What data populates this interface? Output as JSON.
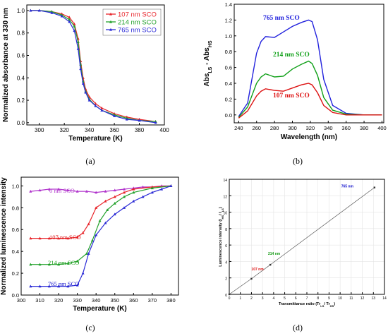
{
  "panels": [
    {
      "label": "(a)"
    },
    {
      "label": "(b)"
    },
    {
      "label": "(c)"
    },
    {
      "label": "(d)"
    }
  ],
  "chart_data": [
    {
      "type": "line",
      "xlabel": "Temperature (K)",
      "ylabel": "Normalized absorbance at 330 nm",
      "xlim": [
        290,
        400
      ],
      "ylim": [
        -0.02,
        1.05
      ],
      "xticks": [
        300,
        320,
        340,
        360,
        380,
        400
      ],
      "yticks": [
        0.0,
        0.2,
        0.4,
        0.6,
        0.8,
        1.0
      ],
      "legend_position": "top-right",
      "series": [
        {
          "name": "107 nm SCO",
          "color": "#e8242a",
          "x": [
            293,
            300,
            310,
            318,
            324,
            328,
            331,
            333,
            335,
            337,
            340,
            345,
            350,
            360,
            370,
            380,
            393
          ],
          "y": [
            1.0,
            1.0,
            0.99,
            0.97,
            0.94,
            0.88,
            0.75,
            0.55,
            0.4,
            0.3,
            0.23,
            0.17,
            0.13,
            0.08,
            0.05,
            0.03,
            0.01
          ]
        },
        {
          "name": "214 nm SCO",
          "color": "#22a12b",
          "x": [
            293,
            300,
            310,
            318,
            324,
            328,
            331,
            333,
            335,
            337,
            340,
            345,
            350,
            360,
            370,
            380,
            393
          ],
          "y": [
            1.0,
            1.0,
            0.99,
            0.96,
            0.92,
            0.86,
            0.72,
            0.52,
            0.37,
            0.28,
            0.21,
            0.15,
            0.11,
            0.07,
            0.04,
            0.02,
            0.01
          ]
        },
        {
          "name": "765 nm SCO",
          "color": "#2b2bd6",
          "x": [
            293,
            300,
            310,
            318,
            324,
            328,
            331,
            333,
            335,
            337,
            340,
            345,
            350,
            360,
            370,
            380,
            393
          ],
          "y": [
            1.0,
            1.0,
            0.98,
            0.95,
            0.9,
            0.82,
            0.66,
            0.48,
            0.35,
            0.27,
            0.2,
            0.15,
            0.11,
            0.06,
            0.03,
            0.02,
            0.0
          ]
        }
      ]
    },
    {
      "type": "line",
      "xlabel": "Wavelength (nm)",
      "ylabel": "Abs",
      "ylabel_sub_1": "LS",
      "ylabel_sep": " - Abs",
      "ylabel_sub_2": "HS",
      "xlim": [
        235,
        402
      ],
      "ylim": [
        -0.1,
        1.4
      ],
      "xticks": [
        240,
        260,
        280,
        300,
        320,
        340,
        360,
        380,
        400
      ],
      "yticks": [
        0.0,
        0.2,
        0.4,
        0.6,
        0.8,
        1.0,
        1.2,
        1.4
      ],
      "series": [
        {
          "name": "765 nm SCO",
          "color": "#2222dd",
          "x": [
            240,
            250,
            260,
            265,
            270,
            280,
            290,
            300,
            310,
            318,
            322,
            328,
            335,
            345,
            360,
            380,
            400
          ],
          "y": [
            -0.02,
            0.15,
            0.78,
            0.93,
            0.99,
            0.98,
            1.05,
            1.12,
            1.17,
            1.2,
            1.18,
            0.95,
            0.45,
            0.12,
            0.02,
            0.0,
            0.0
          ]
        },
        {
          "name": "214 nm SCO",
          "color": "#11a019",
          "x": [
            240,
            250,
            260,
            265,
            270,
            280,
            290,
            300,
            310,
            318,
            322,
            328,
            335,
            345,
            360,
            380,
            400
          ],
          "y": [
            -0.03,
            0.1,
            0.4,
            0.48,
            0.52,
            0.48,
            0.49,
            0.58,
            0.64,
            0.68,
            0.65,
            0.5,
            0.22,
            0.06,
            0.01,
            0.0,
            0.0
          ]
        },
        {
          "name": "107 nm SCO",
          "color": "#dd1111",
          "x": [
            240,
            250,
            260,
            265,
            270,
            280,
            290,
            300,
            310,
            318,
            322,
            328,
            335,
            345,
            360,
            380,
            400
          ],
          "y": [
            -0.04,
            0.05,
            0.24,
            0.3,
            0.33,
            0.31,
            0.3,
            0.34,
            0.38,
            0.4,
            0.38,
            0.28,
            0.12,
            0.03,
            0.0,
            0.0,
            0.0
          ]
        }
      ]
    },
    {
      "type": "line",
      "xlabel": "Temperature (K)",
      "ylabel": "Normalized luminescence intensity",
      "xlim": [
        300,
        384
      ],
      "ylim": [
        0.0,
        1.08
      ],
      "xticks": [
        300,
        310,
        320,
        330,
        340,
        350,
        360,
        370,
        380
      ],
      "yticks": [
        0.0,
        0.2,
        0.4,
        0.6,
        0.8,
        1.0
      ],
      "series": [
        {
          "name": "0 nm SCO",
          "color": "#b033cc",
          "x": [
            305,
            310,
            315,
            320,
            325,
            330,
            335,
            340,
            345,
            350,
            355,
            360,
            365,
            370,
            375,
            380
          ],
          "y": [
            0.95,
            0.96,
            0.97,
            0.97,
            0.96,
            0.95,
            0.95,
            0.94,
            0.95,
            0.96,
            0.97,
            0.98,
            0.99,
            0.99,
            1.0,
            1.0
          ]
        },
        {
          "name": "107 nm SCO",
          "color": "#e8242a",
          "x": [
            305,
            310,
            315,
            320,
            325,
            330,
            333,
            336,
            340,
            345,
            350,
            355,
            360,
            370,
            380
          ],
          "y": [
            0.52,
            0.52,
            0.52,
            0.52,
            0.52,
            0.53,
            0.57,
            0.65,
            0.8,
            0.86,
            0.9,
            0.94,
            0.97,
            0.99,
            1.0
          ]
        },
        {
          "name": "214 nm SCO",
          "color": "#22a12b",
          "x": [
            305,
            310,
            315,
            320,
            325,
            330,
            335,
            338,
            342,
            346,
            350,
            355,
            360,
            370,
            380
          ],
          "y": [
            0.28,
            0.28,
            0.28,
            0.28,
            0.29,
            0.31,
            0.38,
            0.5,
            0.68,
            0.78,
            0.84,
            0.9,
            0.94,
            0.98,
            1.0
          ]
        },
        {
          "name": "765 nm SCO",
          "color": "#2b2bd6",
          "x": [
            305,
            310,
            315,
            320,
            325,
            330,
            333,
            336,
            340,
            345,
            350,
            355,
            360,
            365,
            370,
            375,
            380
          ],
          "y": [
            0.08,
            0.08,
            0.08,
            0.08,
            0.08,
            0.09,
            0.2,
            0.38,
            0.55,
            0.66,
            0.74,
            0.8,
            0.86,
            0.9,
            0.94,
            0.97,
            1.0
          ]
        }
      ]
    },
    {
      "type": "scatter",
      "xlabel": "Transmittance ratio (Tr",
      "xlabel_sub_1": "LS",
      "xlabel_sep": "/ Tr",
      "xlabel_sub_2": "HS",
      "xlabel_end": ")",
      "ylabel": "Luminescence intensity (I",
      "ylabel_sub_1": "HS",
      "ylabel_sep": "/ I",
      "ylabel_sub_2": "LS",
      "ylabel_end": ")",
      "xlim": [
        0,
        14
      ],
      "ylim": [
        0,
        14
      ],
      "xticks": [
        0,
        1,
        2,
        3,
        4,
        5,
        6,
        7,
        8,
        9,
        10,
        11,
        12,
        13,
        14
      ],
      "yticks": [
        0,
        2,
        4,
        6,
        8,
        10,
        12,
        14
      ],
      "grid": true,
      "x": [
        0,
        2.0,
        3.7,
        13.1
      ],
      "y": [
        0,
        1.9,
        3.6,
        13.0
      ],
      "annotations": [
        {
          "text": "107 nm",
          "x": 2.0,
          "y": 2.9,
          "color": "#dd1111"
        },
        {
          "text": "214 nm",
          "x": 3.5,
          "y": 4.8,
          "color": "#119911"
        },
        {
          "text": "765 nm",
          "x": 10.1,
          "y": 13.0,
          "color": "#1111cc"
        }
      ]
    }
  ]
}
